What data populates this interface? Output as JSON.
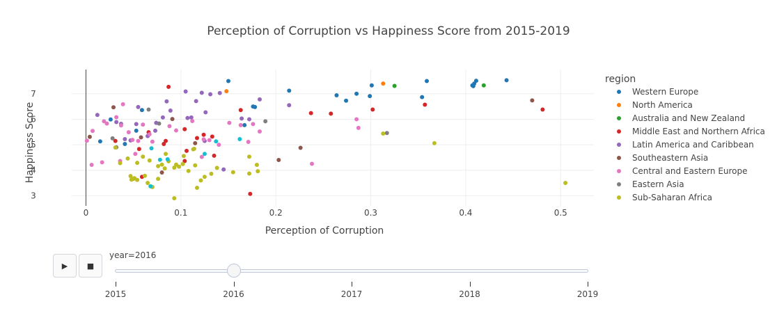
{
  "chart_data": {
    "type": "scatter",
    "title": "Perception of Corruption vs Happiness Score from 2015-2019",
    "xlabel": "Perception of Corruption",
    "ylabel": "Happiness Score",
    "xlim": [
      -0.015,
      0.535
    ],
    "ylim": [
      2.6,
      7.95
    ],
    "x_ticks": [
      0,
      0.1,
      0.2,
      0.3,
      0.4,
      0.5
    ],
    "x_tick_labels": [
      "0",
      "0.1",
      "0.2",
      "0.3",
      "0.4",
      "0.5"
    ],
    "y_ticks": [
      3,
      4,
      5,
      6,
      7
    ],
    "y_tick_labels": [
      "3",
      "4",
      "5",
      "6",
      "7"
    ],
    "grid": true,
    "legend_title": "region",
    "legend_position": "right",
    "series": [
      {
        "name": "Western Europe",
        "color": "#1f77b4",
        "points": [
          [
            0.443,
            7.53
          ],
          [
            0.411,
            7.51
          ],
          [
            0.409,
            7.4
          ],
          [
            0.408,
            7.3
          ],
          [
            0.407,
            7.33
          ],
          [
            0.359,
            7.5
          ],
          [
            0.354,
            6.87
          ],
          [
            0.301,
            7.33
          ],
          [
            0.299,
            6.91
          ],
          [
            0.285,
            7.0
          ],
          [
            0.274,
            6.73
          ],
          [
            0.264,
            6.94
          ],
          [
            0.214,
            7.12
          ],
          [
            0.15,
            7.5
          ],
          [
            0.178,
            6.48
          ],
          [
            0.176,
            6.5
          ],
          [
            0.167,
            5.77
          ],
          [
            0.041,
            5.03
          ],
          [
            0.026,
            5.99
          ],
          [
            0.015,
            5.13
          ],
          [
            0.059,
            6.36
          ],
          [
            0.053,
            5.55
          ]
        ]
      },
      {
        "name": "North America",
        "color": "#ff7f0e",
        "points": [
          [
            0.313,
            7.4
          ],
          [
            0.148,
            7.1
          ]
        ]
      },
      {
        "name": "Australia and New Zealand",
        "color": "#2ca02c",
        "points": [
          [
            0.419,
            7.33
          ],
          [
            0.325,
            7.31
          ]
        ]
      },
      {
        "name": "Middle East and Northern Africa",
        "color": "#d62728",
        "points": [
          [
            0.481,
            6.38
          ],
          [
            0.357,
            6.57
          ],
          [
            0.302,
            6.38
          ],
          [
            0.258,
            6.22
          ],
          [
            0.237,
            6.24
          ],
          [
            0.163,
            6.36
          ],
          [
            0.173,
            3.07
          ],
          [
            0.135,
            4.57
          ],
          [
            0.133,
            5.32
          ],
          [
            0.124,
            5.39
          ],
          [
            0.117,
            5.26
          ],
          [
            0.104,
            5.61
          ],
          [
            0.104,
            4.36
          ],
          [
            0.106,
            4.76
          ],
          [
            0.087,
            7.27
          ],
          [
            0.084,
            5.15
          ],
          [
            0.082,
            5.03
          ],
          [
            0.066,
            5.49
          ],
          [
            0.059,
            3.74
          ],
          [
            0.056,
            4.83
          ],
          [
            0.031,
            5.15
          ]
        ]
      },
      {
        "name": "Latin America and Caribbean",
        "color": "#9467bd",
        "points": [
          [
            0.214,
            6.55
          ],
          [
            0.183,
            6.78
          ],
          [
            0.172,
            6.0
          ],
          [
            0.164,
            6.03
          ],
          [
            0.141,
            7.03
          ],
          [
            0.131,
            6.98
          ],
          [
            0.126,
            6.27
          ],
          [
            0.122,
            7.04
          ],
          [
            0.116,
            6.71
          ],
          [
            0.111,
            6.07
          ],
          [
            0.107,
            6.05
          ],
          [
            0.105,
            7.09
          ],
          [
            0.089,
            6.34
          ],
          [
            0.085,
            6.7
          ],
          [
            0.081,
            6.07
          ],
          [
            0.074,
            5.86
          ],
          [
            0.073,
            5.55
          ],
          [
            0.065,
            5.34
          ],
          [
            0.055,
            6.48
          ],
          [
            0.053,
            5.81
          ],
          [
            0.047,
            5.17
          ],
          [
            0.041,
            5.22
          ],
          [
            0.037,
            5.82
          ],
          [
            0.032,
            5.89
          ],
          [
            0.012,
            6.17
          ],
          [
            0.145,
            4.03
          ],
          [
            0.125,
            5.15
          ]
        ]
      },
      {
        "name": "Southeastern Asia",
        "color": "#8c564b",
        "points": [
          [
            0.47,
            6.74
          ],
          [
            0.226,
            4.88
          ],
          [
            0.203,
            4.4
          ],
          [
            0.091,
            6.01
          ],
          [
            0.115,
            5.06
          ],
          [
            0.08,
            3.91
          ],
          [
            0.058,
            5.29
          ],
          [
            0.029,
            6.47
          ],
          [
            0.004,
            5.31
          ]
        ]
      },
      {
        "name": "Central and Eastern Europe",
        "color": "#e377c2",
        "points": [
          [
            0.285,
            6.0
          ],
          [
            0.287,
            5.66
          ],
          [
            0.238,
            4.25
          ],
          [
            0.183,
            5.52
          ],
          [
            0.176,
            5.81
          ],
          [
            0.163,
            5.77
          ],
          [
            0.151,
            5.86
          ],
          [
            0.13,
            5.18
          ],
          [
            0.124,
            5.21
          ],
          [
            0.112,
            5.93
          ],
          [
            0.095,
            5.56
          ],
          [
            0.088,
            5.73
          ],
          [
            0.07,
            5.12
          ],
          [
            0.067,
            5.41
          ],
          [
            0.06,
            5.79
          ],
          [
            0.055,
            5.15
          ],
          [
            0.049,
            5.19
          ],
          [
            0.045,
            5.49
          ],
          [
            0.037,
            5.76
          ],
          [
            0.036,
            4.36
          ],
          [
            0.032,
            6.08
          ],
          [
            0.022,
            5.83
          ],
          [
            0.017,
            4.31
          ],
          [
            0.006,
            4.21
          ],
          [
            0.001,
            5.16
          ],
          [
            0.039,
            6.59
          ],
          [
            0.019,
            5.92
          ],
          [
            0.007,
            5.54
          ],
          [
            0.122,
            4.52
          ],
          [
            0.14,
            5.0
          ],
          [
            0.052,
            4.64
          ],
          [
            0.171,
            5.11
          ]
        ]
      },
      {
        "name": "Eastern Asia",
        "color": "#7f7f7f",
        "points": [
          [
            0.317,
            5.46
          ],
          [
            0.189,
            5.92
          ],
          [
            0.077,
            5.83
          ],
          [
            0.066,
            6.38
          ],
          [
            0.028,
            5.25
          ],
          [
            0.032,
            4.9
          ]
        ]
      },
      {
        "name": "Sub-Saharan Africa",
        "color": "#bcbd22",
        "points": [
          [
            0.505,
            3.5
          ],
          [
            0.367,
            5.06
          ],
          [
            0.313,
            5.44
          ],
          [
            0.181,
            3.96
          ],
          [
            0.18,
            4.21
          ],
          [
            0.172,
            4.53
          ],
          [
            0.172,
            3.87
          ],
          [
            0.155,
            3.92
          ],
          [
            0.138,
            4.09
          ],
          [
            0.132,
            3.86
          ],
          [
            0.125,
            3.74
          ],
          [
            0.121,
            3.6
          ],
          [
            0.117,
            3.31
          ],
          [
            0.115,
            4.19
          ],
          [
            0.114,
            4.84
          ],
          [
            0.108,
            3.97
          ],
          [
            0.103,
            4.56
          ],
          [
            0.102,
            4.24
          ],
          [
            0.098,
            4.14
          ],
          [
            0.095,
            4.22
          ],
          [
            0.093,
            4.1
          ],
          [
            0.093,
            2.9
          ],
          [
            0.087,
            4.35
          ],
          [
            0.084,
            4.64
          ],
          [
            0.083,
            4.07
          ],
          [
            0.08,
            4.22
          ],
          [
            0.076,
            3.66
          ],
          [
            0.076,
            4.16
          ],
          [
            0.07,
            3.34
          ],
          [
            0.067,
            4.38
          ],
          [
            0.065,
            3.5
          ],
          [
            0.062,
            3.78
          ],
          [
            0.06,
            4.53
          ],
          [
            0.054,
            3.62
          ],
          [
            0.054,
            4.29
          ],
          [
            0.051,
            3.69
          ],
          [
            0.05,
            3.66
          ],
          [
            0.048,
            3.63
          ],
          [
            0.047,
            3.77
          ],
          [
            0.044,
            4.46
          ],
          [
            0.036,
            4.28
          ],
          [
            0.031,
            4.89
          ],
          [
            0.113,
            4.82
          ]
        ]
      },
      {
        "name": "",
        "color": "#17becf",
        "points": [
          [
            0.162,
            5.22
          ],
          [
            0.137,
            5.13
          ],
          [
            0.125,
            4.64
          ],
          [
            0.086,
            4.43
          ],
          [
            0.078,
            4.41
          ],
          [
            0.069,
            4.86
          ],
          [
            0.068,
            3.37
          ]
        ]
      }
    ]
  },
  "controls": {
    "play_icon": "▶",
    "stop_icon": "■",
    "slider_current_label": "year=2016",
    "slider_steps": [
      "2015",
      "2016",
      "2017",
      "2018",
      "2019"
    ],
    "slider_active_index": 1
  }
}
